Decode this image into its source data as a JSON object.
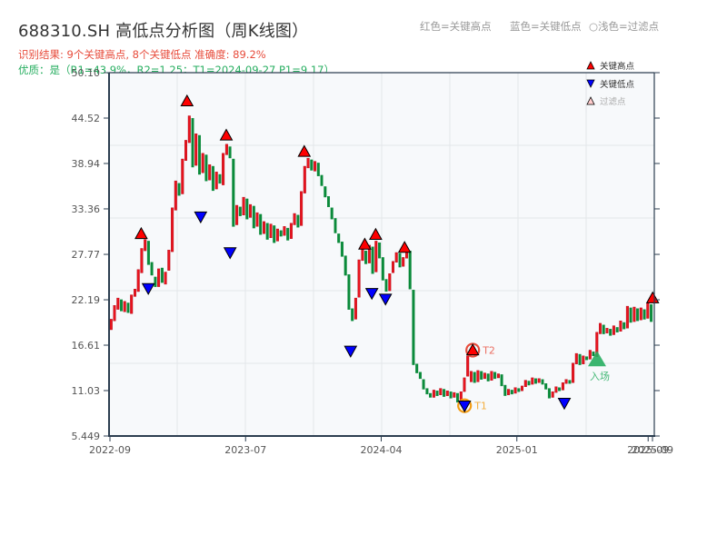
{
  "header": {
    "title": "688310.SH 高低点分析图（周K线图）",
    "result_line": "识别结果: 9个关键高点, 8个关键低点  准确度: 89.2%",
    "quality_line": "优质：是（R1=43.9%，R2=1.25；T1=2024-09-27 P1=9.17）",
    "legend_red": "红色=关键高点",
    "legend_blue": "蓝色=关键低点",
    "legend_faint": "○浅色=过滤点"
  },
  "legend": {
    "items": [
      {
        "label": "关键高点",
        "symbol": "up-triangle",
        "color": "#ff0000"
      },
      {
        "label": "关键低点",
        "symbol": "down-triangle",
        "color": "#0000ff"
      },
      {
        "label": "过滤点",
        "symbol": "up-triangle-outline",
        "color": "#ffcccc"
      }
    ]
  },
  "annotations": {
    "t1_label": "T1",
    "t2_label": "T2",
    "entry_label": "入场"
  },
  "colors": {
    "up": "#e8141e",
    "down": "#0a8a3a",
    "high_marker": "#ff0000",
    "low_marker": "#0000ff",
    "t1": "#f39c12",
    "t2": "#e74c3c",
    "entry": "#27ae60",
    "axis": "#2c3e50",
    "grid": "#e3e6ea",
    "plot_bg": "#f7f9fb"
  },
  "chart_data": {
    "type": "candlestick",
    "title": "688310.SH 高低点分析图（周K线图）",
    "xlabel": "",
    "ylabel": "",
    "ylim": [
      5.449,
      50.1
    ],
    "yticks": [
      "50.10",
      "44.52",
      "38.94",
      "33.36",
      "27.77",
      "22.19",
      "16.61",
      "11.03",
      "5.449"
    ],
    "ytick_values": [
      50.1,
      44.52,
      38.94,
      33.36,
      27.77,
      22.19,
      16.61,
      11.03,
      5.449
    ],
    "xticks": [
      {
        "label": "2022-09",
        "pos": 0.0
      },
      {
        "label": "2023-07",
        "pos": 0.25
      },
      {
        "label": "2024-04",
        "pos": 0.5
      },
      {
        "label": "2025-01",
        "pos": 0.75
      },
      {
        "label": "2025-09",
        "pos": 0.992
      },
      {
        "label": "2025-09",
        "pos": 1.0
      }
    ],
    "grid": true,
    "legend_position": "upper right",
    "candles": [
      [
        18.5,
        19.8
      ],
      [
        19.6,
        21.5
      ],
      [
        21.0,
        22.4
      ],
      [
        22.2,
        20.8
      ],
      [
        20.7,
        22.0
      ],
      [
        21.8,
        20.6
      ],
      [
        20.5,
        22.8
      ],
      [
        22.6,
        23.5
      ],
      [
        23.2,
        25.9
      ],
      [
        25.5,
        28.5
      ],
      [
        28.2,
        29.6
      ],
      [
        29.4,
        26.5
      ],
      [
        26.8,
        25.2
      ],
      [
        25.0,
        23.8
      ],
      [
        23.8,
        26.0
      ],
      [
        26.1,
        24.3
      ],
      [
        24.1,
        25.6
      ],
      [
        25.8,
        28.3
      ],
      [
        28.1,
        33.5
      ],
      [
        33.2,
        36.8
      ],
      [
        36.5,
        35.0
      ],
      [
        35.2,
        39.5
      ],
      [
        39.3,
        41.8
      ],
      [
        41.5,
        44.8
      ],
      [
        44.5,
        38.5
      ],
      [
        38.7,
        42.6
      ],
      [
        42.4,
        37.6
      ],
      [
        37.8,
        40.2
      ],
      [
        40.0,
        36.8
      ],
      [
        36.9,
        38.8
      ],
      [
        38.6,
        35.6
      ],
      [
        35.8,
        37.9
      ],
      [
        37.6,
        36.5
      ],
      [
        36.3,
        40.2
      ],
      [
        40.0,
        41.3
      ],
      [
        41.0,
        39.6
      ],
      [
        39.5,
        31.2
      ],
      [
        31.4,
        33.8
      ],
      [
        33.6,
        32.5
      ],
      [
        32.6,
        34.8
      ],
      [
        34.6,
        32.1
      ],
      [
        32.3,
        33.9
      ],
      [
        33.7,
        31.0
      ],
      [
        31.2,
        32.9
      ],
      [
        32.7,
        30.2
      ],
      [
        30.3,
        31.8
      ],
      [
        31.6,
        29.6
      ],
      [
        29.8,
        31.5
      ],
      [
        31.3,
        29.2
      ],
      [
        29.4,
        30.9
      ],
      [
        30.7,
        30.0
      ],
      [
        30.1,
        31.2
      ],
      [
        31.0,
        29.5
      ],
      [
        29.7,
        31.6
      ],
      [
        31.4,
        32.8
      ],
      [
        32.6,
        31.1
      ],
      [
        31.3,
        35.5
      ],
      [
        35.3,
        38.6
      ],
      [
        38.4,
        39.6
      ],
      [
        39.4,
        38.1
      ],
      [
        38.0,
        39.2
      ],
      [
        39.0,
        37.4
      ],
      [
        37.5,
        36.2
      ],
      [
        36.1,
        34.8
      ],
      [
        34.9,
        33.6
      ],
      [
        33.5,
        32.1
      ],
      [
        32.2,
        30.4
      ],
      [
        30.3,
        29.2
      ],
      [
        29.3,
        27.5
      ],
      [
        27.6,
        25.2
      ],
      [
        25.3,
        21.0
      ],
      [
        21.1,
        19.6
      ],
      [
        19.8,
        22.4
      ],
      [
        22.5,
        27.1
      ],
      [
        27.0,
        28.4
      ],
      [
        28.2,
        26.6
      ],
      [
        26.7,
        28.9
      ],
      [
        28.7,
        25.4
      ],
      [
        25.6,
        29.4
      ],
      [
        29.2,
        27.3
      ],
      [
        27.4,
        24.6
      ],
      [
        24.7,
        23.2
      ],
      [
        23.3,
        25.4
      ],
      [
        25.5,
        26.9
      ],
      [
        26.8,
        28.0
      ],
      [
        27.9,
        26.2
      ],
      [
        26.3,
        27.4
      ],
      [
        27.3,
        28.3
      ],
      [
        28.2,
        23.5
      ],
      [
        23.4,
        14.2
      ],
      [
        14.3,
        13.2
      ],
      [
        13.3,
        12.5
      ],
      [
        12.4,
        11.2
      ],
      [
        11.3,
        10.6
      ],
      [
        10.7,
        10.2
      ],
      [
        10.2,
        11.1
      ],
      [
        11.0,
        10.4
      ],
      [
        10.5,
        11.3
      ],
      [
        11.2,
        10.3
      ],
      [
        10.4,
        11.0
      ],
      [
        10.9,
        10.1
      ],
      [
        10.2,
        10.8
      ],
      [
        10.7,
        9.6
      ],
      [
        9.7,
        10.9
      ],
      [
        10.9,
        12.6
      ],
      [
        12.8,
        15.3
      ],
      [
        12.1,
        13.4
      ],
      [
        13.3,
        12.0
      ],
      [
        12.1,
        13.5
      ],
      [
        13.4,
        12.4
      ],
      [
        12.5,
        13.2
      ],
      [
        13.1,
        12.2
      ],
      [
        12.3,
        13.4
      ],
      [
        13.3,
        12.5
      ],
      [
        12.6,
        13.1
      ],
      [
        13.0,
        11.6
      ],
      [
        11.7,
        10.4
      ],
      [
        10.5,
        11.2
      ],
      [
        11.1,
        10.6
      ],
      [
        10.7,
        11.4
      ],
      [
        11.3,
        10.9
      ],
      [
        11.0,
        11.6
      ],
      [
        11.5,
        12.3
      ],
      [
        12.2,
        11.7
      ],
      [
        11.8,
        12.6
      ],
      [
        12.5,
        11.9
      ],
      [
        12.0,
        12.5
      ],
      [
        12.4,
        11.8
      ],
      [
        11.9,
        11.2
      ],
      [
        11.3,
        10.1
      ],
      [
        10.2,
        10.9
      ],
      [
        10.8,
        11.5
      ],
      [
        11.4,
        11.0
      ],
      [
        11.1,
        12.0
      ],
      [
        11.9,
        12.4
      ],
      [
        12.3,
        11.9
      ],
      [
        12.0,
        14.4
      ],
      [
        14.3,
        15.6
      ],
      [
        15.5,
        14.2
      ],
      [
        14.3,
        15.3
      ],
      [
        15.2,
        14.8
      ],
      [
        14.9,
        16.0
      ],
      [
        15.8,
        15.3
      ],
      [
        15.2,
        18.2
      ],
      [
        18.0,
        19.3
      ],
      [
        19.1,
        18.0
      ],
      [
        18.1,
        18.7
      ],
      [
        18.6,
        17.8
      ],
      [
        17.9,
        19.0
      ],
      [
        18.8,
        18.2
      ],
      [
        18.3,
        19.6
      ],
      [
        19.4,
        18.6
      ],
      [
        18.7,
        21.4
      ],
      [
        21.2,
        19.4
      ],
      [
        19.5,
        21.3
      ],
      [
        21.1,
        19.6
      ],
      [
        19.7,
        21.2
      ],
      [
        21.0,
        19.8
      ],
      [
        19.9,
        21.8
      ],
      [
        21.6,
        19.5
      ]
    ],
    "key_highs": [
      {
        "pos": 0.059,
        "price": 30.3
      },
      {
        "pos": 0.143,
        "price": 46.6
      },
      {
        "pos": 0.215,
        "price": 42.4
      },
      {
        "pos": 0.358,
        "price": 40.4
      },
      {
        "pos": 0.469,
        "price": 29.0
      },
      {
        "pos": 0.489,
        "price": 30.2
      },
      {
        "pos": 0.542,
        "price": 28.6
      },
      {
        "pos": 0.667,
        "price": 16.0,
        "label": "T2"
      },
      {
        "pos": 0.997,
        "price": 22.4
      }
    ],
    "key_lows": [
      {
        "pos": 0.072,
        "price": 23.6
      },
      {
        "pos": 0.168,
        "price": 32.4
      },
      {
        "pos": 0.222,
        "price": 28.0
      },
      {
        "pos": 0.443,
        "price": 15.9
      },
      {
        "pos": 0.482,
        "price": 23.0
      },
      {
        "pos": 0.507,
        "price": 22.3
      },
      {
        "pos": 0.652,
        "price": 9.17,
        "label": "T1",
        "date": "2024-09-27"
      },
      {
        "pos": 0.835,
        "price": 9.5
      }
    ],
    "entry": {
      "pos": 0.895,
      "price": 14.8,
      "label": "入场"
    }
  }
}
